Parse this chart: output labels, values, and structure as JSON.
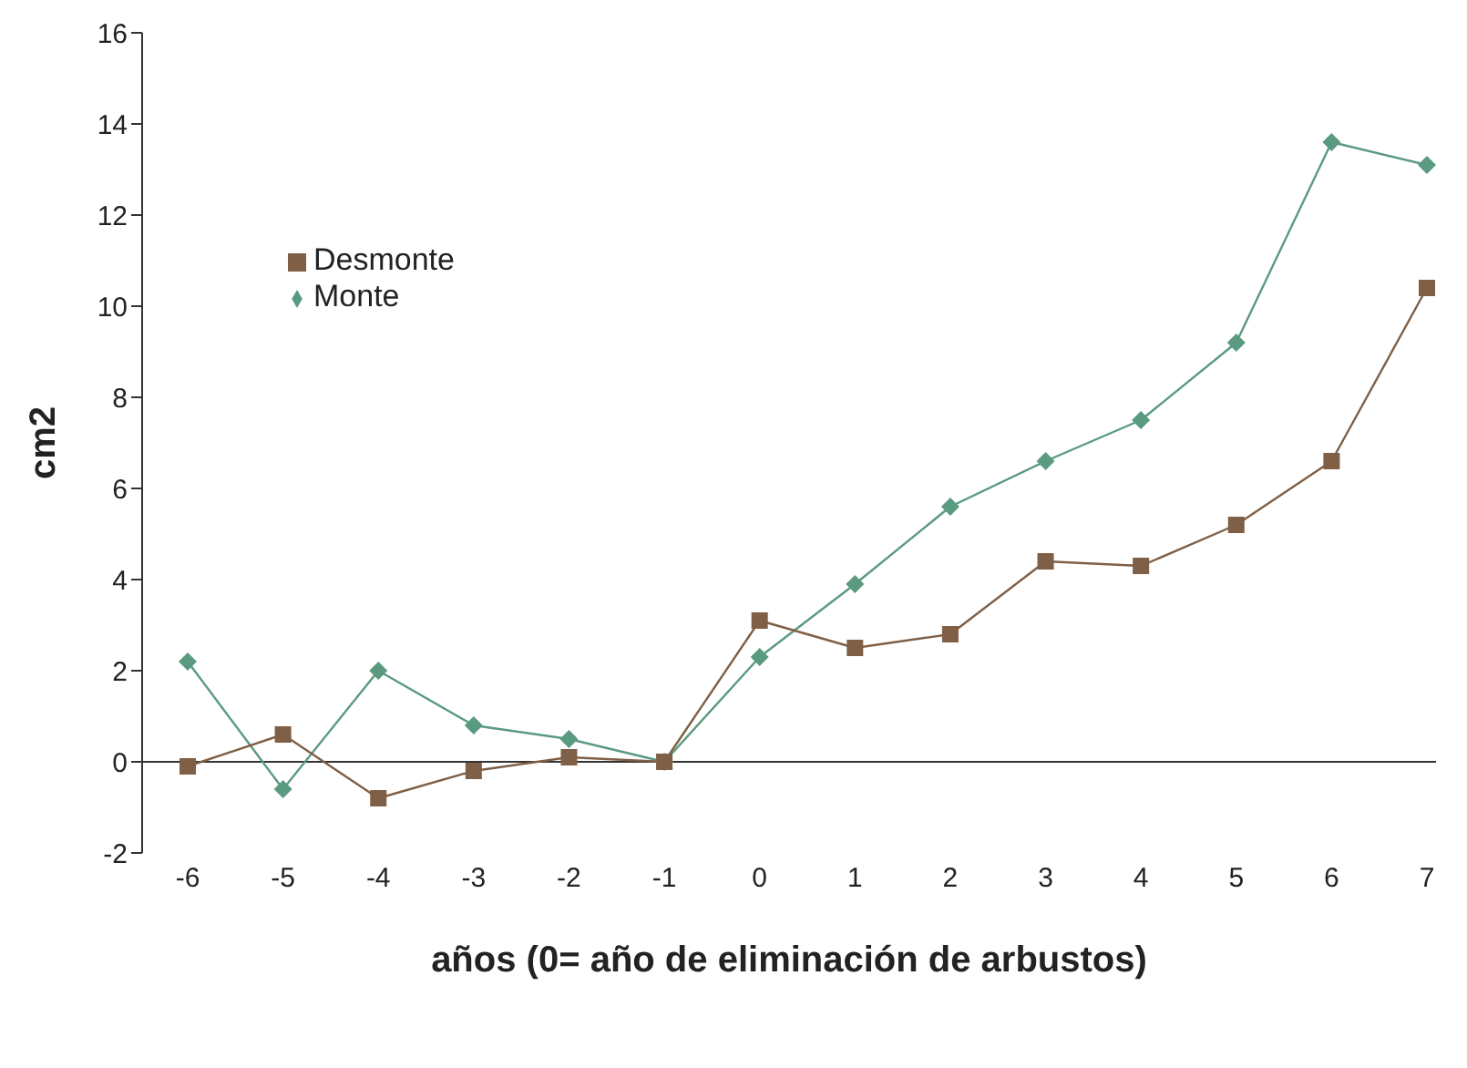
{
  "chart_data": {
    "type": "line",
    "xlabel": "años (0= año de eliminación de arbustos)",
    "ylabel": "cm2",
    "categories": [
      "-6",
      "-5",
      "-4",
      "-3",
      "-2",
      "-1",
      "0",
      "1",
      "2",
      "3",
      "4",
      "5",
      "6",
      "7"
    ],
    "series": [
      {
        "name": "Monte",
        "color": "#5a9a80",
        "marker": "diamond",
        "values": [
          2.2,
          -0.6,
          2.0,
          0.8,
          0.5,
          0.0,
          2.3,
          3.9,
          5.6,
          6.6,
          7.5,
          9.2,
          13.6,
          13.1
        ]
      },
      {
        "name": "Desmonte",
        "color": "#7f5f45",
        "marker": "square",
        "values": [
          -0.1,
          0.6,
          -0.8,
          -0.2,
          0.1,
          0.0,
          3.1,
          2.5,
          2.8,
          4.4,
          4.3,
          5.2,
          6.6,
          10.4
        ]
      }
    ],
    "ylim": [
      -2,
      16
    ],
    "yticks": [
      -2,
      0,
      2,
      4,
      6,
      8,
      10,
      12,
      14,
      16
    ],
    "ref_lines": [
      {
        "axis": "y",
        "value": 0,
        "color": "#333333"
      }
    ],
    "grid": false,
    "legend": "top left"
  }
}
